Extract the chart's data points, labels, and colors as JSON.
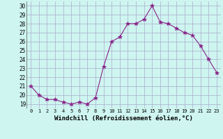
{
  "x": [
    0,
    1,
    2,
    3,
    4,
    5,
    6,
    7,
    8,
    9,
    10,
    11,
    12,
    13,
    14,
    15,
    16,
    17,
    18,
    19,
    20,
    21,
    22,
    23
  ],
  "y": [
    21,
    20,
    19.5,
    19.5,
    19.2,
    19,
    19.2,
    19,
    19.7,
    23.2,
    26,
    26.5,
    28,
    28,
    28.5,
    30,
    28.2,
    28,
    27.5,
    27,
    26.7,
    25.5,
    24,
    22.5
  ],
  "line_color": "#882288",
  "marker": "*",
  "marker_size": 4,
  "bg_color": "#cef5f0",
  "grid_color": "#aaaacc",
  "xlabel": "Windchill (Refroidissement éolien,°C)",
  "xlabel_fontsize": 6.5,
  "ylabel_ticks": [
    19,
    20,
    21,
    22,
    23,
    24,
    25,
    26,
    27,
    28,
    29,
    30
  ],
  "xlim": [
    -0.5,
    23.5
  ],
  "ylim": [
    18.5,
    30.5
  ],
  "xtick_fontsize": 5.0,
  "ytick_fontsize": 5.5
}
